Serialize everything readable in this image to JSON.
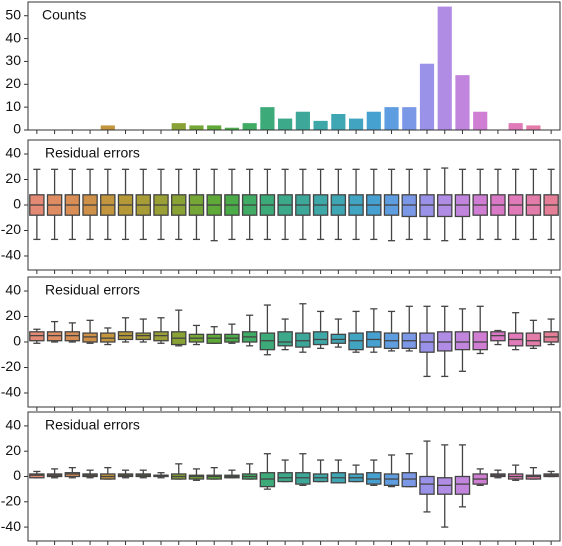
{
  "chart_data": [
    {
      "type": "bar",
      "label": "Counts",
      "ylim": [
        0,
        56
      ],
      "yticks": [
        0,
        10,
        20,
        30,
        40,
        50
      ],
      "values": [
        0,
        0,
        0,
        0,
        2,
        0,
        0,
        0,
        3,
        2,
        2,
        1,
        3,
        10,
        5,
        8,
        4,
        7,
        5,
        8,
        10,
        10,
        29,
        54,
        24,
        8,
        0,
        3,
        2,
        0
      ],
      "colors": [
        "#e48a74",
        "#df8c63",
        "#d88e55",
        "#cf9149",
        "#c3953f",
        "#b59937",
        "#a89c36",
        "#9a9f36",
        "#89a236",
        "#75a636",
        "#5ea937",
        "#4aab48",
        "#40ab64",
        "#3daa79",
        "#3ca98a",
        "#3da899",
        "#3ea7a7",
        "#3fa6b4",
        "#41a4c1",
        "#47a1d0",
        "#5e9de0",
        "#7b98e7",
        "#9a92e8",
        "#b18ce4",
        "#c285dd",
        "#d07ed4",
        "#da7ac7",
        "#e07ab8",
        "#e37ca8",
        "#e57f97"
      ]
    },
    {
      "type": "box",
      "label": "Residual errors",
      "ylim": [
        -51,
        51
      ],
      "yticks": [
        -40,
        -20,
        0,
        20,
        40
      ],
      "low": [
        -27,
        -27,
        -27,
        -27,
        -27,
        -27,
        -27,
        -27,
        -27,
        -27,
        -28,
        -27,
        -27,
        -27,
        -27,
        -27,
        -27,
        -27,
        -27,
        -27,
        -28,
        -27,
        -27,
        -28,
        -27,
        -27,
        -27,
        -27,
        -27,
        -27
      ],
      "q1": [
        -8,
        -8,
        -8,
        -8,
        -8,
        -8,
        -8,
        -8,
        -8,
        -8,
        -8,
        -8,
        -8,
        -8,
        -8,
        -8,
        -8,
        -8,
        -8,
        -8,
        -8,
        -9,
        -9,
        -9,
        -9,
        -8,
        -8,
        -8,
        -8,
        -8
      ],
      "median": [
        0,
        0,
        0,
        0,
        0,
        0,
        0,
        0,
        0,
        0,
        0,
        0,
        0,
        0,
        0,
        0,
        0,
        0,
        0,
        0,
        0,
        0,
        0,
        0,
        0,
        0,
        0,
        0,
        0,
        0
      ],
      "q3": [
        8,
        8,
        8,
        8,
        8,
        8,
        8,
        8,
        8,
        8,
        8,
        8,
        8,
        8,
        8,
        8,
        8,
        8,
        8,
        8,
        8,
        8,
        8,
        8,
        8,
        8,
        8,
        8,
        8,
        8
      ],
      "high": [
        28,
        28,
        28,
        28,
        28,
        28,
        28,
        28,
        28,
        28,
        28,
        28,
        28,
        28,
        28,
        28,
        28,
        28,
        28,
        28,
        28,
        28,
        28,
        29,
        28,
        28,
        28,
        28,
        28,
        28
      ],
      "colors": [
        "#e48a74",
        "#df8c63",
        "#d88e55",
        "#cf9149",
        "#c3953f",
        "#b59937",
        "#a89c36",
        "#9a9f36",
        "#89a236",
        "#75a636",
        "#5ea937",
        "#4aab48",
        "#40ab64",
        "#3daa79",
        "#3ca98a",
        "#3da899",
        "#3ea7a7",
        "#3fa6b4",
        "#41a4c1",
        "#47a1d0",
        "#5e9de0",
        "#7b98e7",
        "#9a92e8",
        "#b18ce4",
        "#c285dd",
        "#d07ed4",
        "#da7ac7",
        "#e07ab8",
        "#e37ca8",
        "#e57f97"
      ]
    },
    {
      "type": "box",
      "label": "Residual errors",
      "ylim": [
        -51,
        51
      ],
      "yticks": [
        -40,
        -20,
        0,
        20,
        40
      ],
      "low": [
        -1,
        0,
        0,
        -1,
        -2,
        0,
        0,
        -1,
        -3,
        -2,
        -1,
        -1,
        -3,
        -10,
        -6,
        -8,
        -5,
        -4,
        -8,
        -8,
        -7,
        -7,
        -27,
        -27,
        -23,
        -9,
        -2,
        -6,
        -5,
        -2
      ],
      "q1": [
        1,
        1,
        1,
        0,
        0,
        2,
        2,
        1,
        -2,
        0,
        -1,
        0,
        0,
        -6,
        -3,
        -4,
        -2,
        -1,
        -6,
        -4,
        -5,
        -5,
        -8,
        -7,
        -6,
        -6,
        1,
        -3,
        -3,
        0
      ],
      "median": [
        5,
        5,
        5,
        4,
        3,
        5,
        5,
        5,
        3,
        3,
        3,
        3,
        4,
        1,
        0,
        1,
        2,
        2,
        1,
        2,
        1,
        1,
        0,
        0,
        0,
        0,
        5,
        2,
        1,
        4
      ],
      "q3": [
        8,
        8,
        8,
        7,
        7,
        8,
        7,
        8,
        8,
        6,
        6,
        6,
        8,
        7,
        8,
        7,
        8,
        6,
        7,
        8,
        7,
        7,
        7,
        8,
        8,
        8,
        8,
        7,
        7,
        8
      ],
      "high": [
        10,
        16,
        15,
        17,
        11,
        19,
        18,
        19,
        25,
        13,
        12,
        14,
        21,
        29,
        18,
        30,
        24,
        18,
        24,
        26,
        24,
        28,
        28,
        28,
        26,
        28,
        9,
        23,
        17,
        18
      ],
      "colors": [
        "#e48a74",
        "#df8c63",
        "#d88e55",
        "#cf9149",
        "#c3953f",
        "#b59937",
        "#a89c36",
        "#9a9f36",
        "#89a236",
        "#75a636",
        "#5ea937",
        "#4aab48",
        "#40ab64",
        "#3daa79",
        "#3ca98a",
        "#3da899",
        "#3ea7a7",
        "#3fa6b4",
        "#41a4c1",
        "#47a1d0",
        "#5e9de0",
        "#7b98e7",
        "#9a92e8",
        "#b18ce4",
        "#c285dd",
        "#d07ed4",
        "#da7ac7",
        "#e07ab8",
        "#e37ca8",
        "#e57f97"
      ]
    },
    {
      "type": "box",
      "label": "Residual errors",
      "ylim": [
        -51,
        51
      ],
      "yticks": [
        -40,
        -20,
        0,
        20,
        40
      ],
      "low": [
        -1,
        -1,
        -1,
        -1,
        -2,
        -1,
        -1,
        -1,
        -2,
        -3,
        -2,
        -1,
        -2,
        -10,
        -4,
        -7,
        -4,
        -5,
        -4,
        -7,
        -8,
        -8,
        -28,
        -40,
        -24,
        -7,
        -1,
        -3,
        -2,
        0
      ],
      "q1": [
        -1,
        0,
        0,
        0,
        -2,
        0,
        0,
        0,
        -2,
        -2,
        -2,
        -1,
        -2,
        -8,
        -4,
        -6,
        -4,
        -5,
        -4,
        -6,
        -7,
        -8,
        -14,
        -14,
        -14,
        -6,
        0,
        -2,
        -2,
        0
      ],
      "median": [
        1,
        1,
        2,
        1,
        0,
        1,
        1,
        1,
        0,
        0,
        0,
        0,
        0,
        -2,
        -1,
        -1,
        -1,
        -1,
        -1,
        -2,
        -2,
        -2,
        -6,
        -7,
        -6,
        -2,
        1,
        0,
        0,
        1
      ],
      "q3": [
        2,
        2,
        3,
        2,
        2,
        2,
        2,
        1,
        2,
        1,
        1,
        1,
        2,
        3,
        3,
        3,
        2,
        3,
        2,
        3,
        2,
        3,
        0,
        -1,
        0,
        2,
        2,
        2,
        1,
        2
      ],
      "high": [
        4,
        6,
        7,
        5,
        7,
        5,
        5,
        3,
        10,
        6,
        7,
        5,
        10,
        18,
        13,
        18,
        13,
        13,
        9,
        13,
        17,
        18,
        28,
        25,
        25,
        6,
        5,
        9,
        7,
        4
      ],
      "colors": [
        "#e48a74",
        "#df8c63",
        "#d88e55",
        "#cf9149",
        "#c3953f",
        "#b59937",
        "#a89c36",
        "#9a9f36",
        "#89a236",
        "#75a636",
        "#5ea937",
        "#4aab48",
        "#40ab64",
        "#3daa79",
        "#3ca98a",
        "#3da899",
        "#3ea7a7",
        "#3fa6b4",
        "#41a4c1",
        "#47a1d0",
        "#5e9de0",
        "#7b98e7",
        "#9a92e8",
        "#b18ce4",
        "#c285dd",
        "#d07ed4",
        "#da7ac7",
        "#e07ab8",
        "#e37ca8",
        "#e57f97"
      ]
    }
  ]
}
